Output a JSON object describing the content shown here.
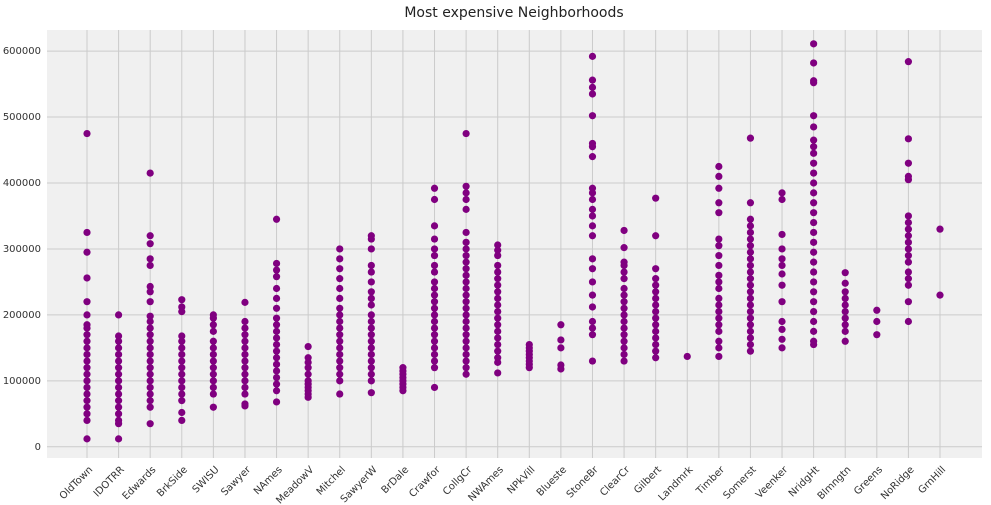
{
  "chart_data": {
    "type": "scatter",
    "title": "Most expensive Neighborhoods",
    "categories": [
      "OldTown",
      "IDOTRR",
      "Edwards",
      "BrkSide",
      "SWISU",
      "Sawyer",
      "NAmes",
      "MeadowV",
      "Mitchel",
      "SawyerW",
      "BrDale",
      "Crawfor",
      "CollgCr",
      "NWAmes",
      "NPkVill",
      "Blueste",
      "StoneBr",
      "ClearCr",
      "Gilbert",
      "Landmrk",
      "Timber",
      "Somerst",
      "Veenker",
      "NridgHt",
      "Blmngtn",
      "Greens",
      "NoRidge",
      "GrnHill"
    ],
    "series": [
      {
        "color": "#800080",
        "values": [
          [
            475000,
            325000,
            295000,
            256000,
            220000,
            200000,
            185000,
            180000,
            170000,
            160000,
            150000,
            140000,
            130000,
            120000,
            110000,
            100000,
            90000,
            80000,
            70000,
            60000,
            50000,
            40000,
            12000
          ],
          [
            200000,
            168000,
            160000,
            150000,
            140000,
            130000,
            120000,
            110000,
            100000,
            90000,
            80000,
            70000,
            60000,
            50000,
            40000,
            35000,
            12000
          ],
          [
            415000,
            320000,
            308000,
            285000,
            275000,
            243000,
            235000,
            220000,
            198000,
            190000,
            180000,
            170000,
            160000,
            150000,
            140000,
            130000,
            120000,
            110000,
            100000,
            90000,
            80000,
            70000,
            60000,
            35000
          ],
          [
            223000,
            212000,
            205000,
            168000,
            160000,
            150000,
            140000,
            130000,
            120000,
            110000,
            100000,
            90000,
            80000,
            70000,
            52000,
            40000
          ],
          [
            200000,
            195000,
            185000,
            175000,
            160000,
            150000,
            140000,
            130000,
            120000,
            110000,
            100000,
            90000,
            80000,
            60000
          ],
          [
            219000,
            190000,
            180000,
            170000,
            160000,
            150000,
            140000,
            130000,
            120000,
            110000,
            100000,
            90000,
            80000,
            65000,
            62000
          ],
          [
            345000,
            278000,
            268000,
            258000,
            240000,
            225000,
            210000,
            195000,
            185000,
            175000,
            165000,
            155000,
            145000,
            135000,
            125000,
            115000,
            105000,
            95000,
            85000,
            68000
          ],
          [
            152000,
            135000,
            128000,
            120000,
            110000,
            100000,
            95000,
            90000,
            85000,
            80000,
            75000
          ],
          [
            300000,
            285000,
            270000,
            255000,
            240000,
            225000,
            210000,
            200000,
            190000,
            180000,
            170000,
            160000,
            150000,
            140000,
            130000,
            120000,
            110000,
            100000,
            80000
          ],
          [
            320000,
            315000,
            300000,
            275000,
            265000,
            250000,
            235000,
            225000,
            215000,
            200000,
            190000,
            180000,
            170000,
            160000,
            150000,
            140000,
            130000,
            120000,
            110000,
            100000,
            82000
          ],
          [
            120000,
            115000,
            110000,
            105000,
            100000,
            95000,
            90000,
            85000
          ],
          [
            392000,
            375000,
            335000,
            315000,
            300000,
            290000,
            275000,
            265000,
            250000,
            240000,
            230000,
            220000,
            210000,
            200000,
            190000,
            180000,
            170000,
            160000,
            150000,
            140000,
            130000,
            120000,
            90000
          ],
          [
            475000,
            395000,
            385000,
            375000,
            360000,
            325000,
            310000,
            300000,
            290000,
            280000,
            270000,
            260000,
            250000,
            240000,
            230000,
            220000,
            210000,
            200000,
            190000,
            180000,
            170000,
            160000,
            150000,
            140000,
            130000,
            120000,
            110000
          ],
          [
            306000,
            298000,
            290000,
            275000,
            265000,
            255000,
            245000,
            235000,
            225000,
            215000,
            205000,
            195000,
            185000,
            175000,
            165000,
            155000,
            145000,
            135000,
            128000,
            112000
          ],
          [
            155000,
            150000,
            145000,
            140000,
            135000,
            130000,
            125000,
            120000
          ],
          [
            185000,
            162000,
            150000,
            124000,
            118000
          ],
          [
            592000,
            556000,
            545000,
            535000,
            502000,
            460000,
            455000,
            440000,
            392000,
            385000,
            375000,
            360000,
            350000,
            335000,
            320000,
            285000,
            270000,
            250000,
            230000,
            212000,
            190000,
            180000,
            170000,
            130000
          ],
          [
            328000,
            302000,
            280000,
            275000,
            265000,
            255000,
            240000,
            230000,
            220000,
            210000,
            200000,
            190000,
            180000,
            170000,
            160000,
            150000,
            140000,
            130000
          ],
          [
            377000,
            320000,
            270000,
            255000,
            245000,
            235000,
            225000,
            215000,
            205000,
            195000,
            185000,
            175000,
            165000,
            155000,
            145000,
            135000
          ],
          [
            137000
          ],
          [
            425000,
            410000,
            392000,
            370000,
            355000,
            315000,
            305000,
            290000,
            275000,
            260000,
            250000,
            240000,
            225000,
            215000,
            205000,
            195000,
            185000,
            175000,
            160000,
            150000,
            137000
          ],
          [
            468000,
            370000,
            345000,
            335000,
            325000,
            315000,
            305000,
            295000,
            285000,
            275000,
            265000,
            255000,
            245000,
            235000,
            225000,
            215000,
            205000,
            195000,
            185000,
            175000,
            165000,
            155000,
            145000
          ],
          [
            385000,
            375000,
            322000,
            300000,
            285000,
            275000,
            262000,
            245000,
            220000,
            190000,
            178000,
            163000,
            150000
          ],
          [
            611000,
            582000,
            555000,
            552000,
            502000,
            485000,
            465000,
            455000,
            445000,
            430000,
            415000,
            400000,
            385000,
            370000,
            355000,
            340000,
            325000,
            310000,
            295000,
            280000,
            265000,
            250000,
            235000,
            220000,
            205000,
            190000,
            175000,
            160000,
            155000
          ],
          [
            264000,
            248000,
            235000,
            225000,
            215000,
            205000,
            195000,
            185000,
            175000,
            160000
          ],
          [
            207000,
            190000,
            170000
          ],
          [
            584000,
            467000,
            430000,
            410000,
            405000,
            350000,
            340000,
            330000,
            320000,
            310000,
            300000,
            290000,
            280000,
            265000,
            255000,
            245000,
            220000,
            190000
          ],
          [
            330000,
            230000
          ]
        ]
      }
    ],
    "ylim": [
      -17000,
      632000
    ],
    "yticks": [
      0,
      100000,
      200000,
      300000,
      400000,
      500000,
      600000
    ],
    "grid": true
  }
}
